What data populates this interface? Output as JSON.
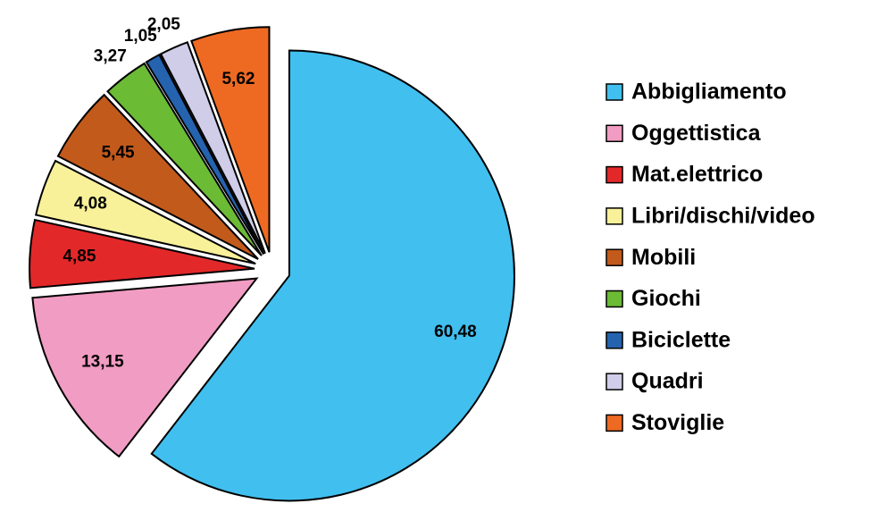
{
  "chart_data": {
    "type": "pie",
    "categories": [
      "Abbigliamento",
      "Oggettistica",
      "Mat.elettrico",
      "Libri/dischi/video",
      "Mobili",
      "Giochi",
      "Biciclette",
      "Quadri",
      "Stoviglie"
    ],
    "values": [
      60.48,
      13.15,
      4.85,
      4.08,
      5.45,
      3.27,
      1.05,
      2.05,
      5.62
    ],
    "value_labels": [
      "60,48",
      "13,15",
      "4,85",
      "4,08",
      "5,45",
      "3,27",
      "1,05",
      "2,05",
      "5,62"
    ],
    "colors": [
      "#41bfef",
      "#f19cc3",
      "#e3282a",
      "#f8f19a",
      "#c25a1c",
      "#6bbb35",
      "#2563ae",
      "#cfcde8",
      "#ee6a22"
    ],
    "legend": "right"
  }
}
